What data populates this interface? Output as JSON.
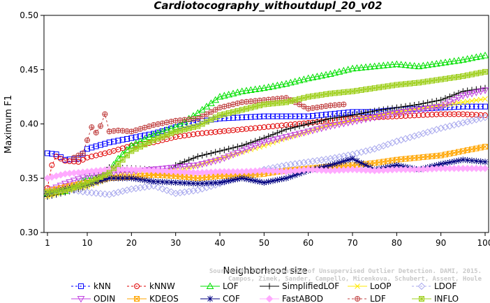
{
  "chart_data": {
    "type": "line",
    "title": "Cardiotocography_withoutdupl_20_v02",
    "xlabel": "Neighborhood size",
    "ylabel": "Maximum F1",
    "xlim": [
      1,
      100
    ],
    "ylim": [
      0.3,
      0.5
    ],
    "xticks": [
      1,
      10,
      20,
      30,
      40,
      50,
      60,
      70,
      80,
      90,
      100
    ],
    "yticks": [
      0.3,
      0.35,
      0.4,
      0.45,
      0.5
    ],
    "xtick_labels": [
      "1",
      "10",
      "20",
      "30",
      "40",
      "50",
      "60",
      "70",
      "80",
      "90",
      "100"
    ],
    "ytick_labels": [
      "0.30",
      "0.35",
      "0.40",
      "0.45",
      "0.50"
    ],
    "grid": false,
    "legend_position": "bottom",
    "watermark": {
      "line1": "Source: On the Evaluation of Unsupervised Outlier Detection. DAMI, 2015.",
      "line2": "Campos, Zimek, Sander, Campello, Micenkova, Schubert, Assent, Houle"
    },
    "series": [
      {
        "name": "kNN",
        "color": "#0000ff",
        "marker": "square",
        "dash": "3,3",
        "points": [
          [
            1,
            0.373
          ],
          [
            3,
            0.372
          ],
          [
            5,
            0.367
          ],
          [
            8,
            0.368
          ],
          [
            10,
            0.377
          ],
          [
            15,
            0.383
          ],
          [
            20,
            0.387
          ],
          [
            25,
            0.391
          ],
          [
            30,
            0.397
          ],
          [
            35,
            0.402
          ],
          [
            40,
            0.405
          ],
          [
            45,
            0.406
          ],
          [
            50,
            0.407
          ],
          [
            55,
            0.407
          ],
          [
            60,
            0.407
          ],
          [
            65,
            0.409
          ],
          [
            70,
            0.411
          ],
          [
            75,
            0.411
          ],
          [
            80,
            0.413
          ],
          [
            85,
            0.414
          ],
          [
            90,
            0.415
          ],
          [
            95,
            0.416
          ],
          [
            100,
            0.416
          ]
        ]
      },
      {
        "name": "kNNW",
        "color": "#e00000",
        "marker": "circle",
        "dash": "3,3",
        "points": [
          [
            1,
            0.341
          ],
          [
            2,
            0.362
          ],
          [
            3,
            0.37
          ],
          [
            5,
            0.366
          ],
          [
            8,
            0.365
          ],
          [
            10,
            0.369
          ],
          [
            15,
            0.374
          ],
          [
            20,
            0.38
          ],
          [
            25,
            0.383
          ],
          [
            30,
            0.388
          ],
          [
            35,
            0.391
          ],
          [
            40,
            0.393
          ],
          [
            45,
            0.395
          ],
          [
            50,
            0.397
          ],
          [
            55,
            0.399
          ],
          [
            60,
            0.401
          ],
          [
            65,
            0.403
          ],
          [
            70,
            0.405
          ],
          [
            75,
            0.406
          ],
          [
            80,
            0.407
          ],
          [
            85,
            0.408
          ],
          [
            90,
            0.409
          ],
          [
            95,
            0.409
          ],
          [
            100,
            0.408
          ]
        ]
      },
      {
        "name": "LOF",
        "color": "#00e000",
        "marker": "triangle",
        "dash": "",
        "points": [
          [
            1,
            0.336
          ],
          [
            5,
            0.338
          ],
          [
            8,
            0.345
          ],
          [
            10,
            0.35
          ],
          [
            13,
            0.35
          ],
          [
            15,
            0.357
          ],
          [
            17,
            0.368
          ],
          [
            20,
            0.38
          ],
          [
            25,
            0.39
          ],
          [
            30,
            0.397
          ],
          [
            35,
            0.41
          ],
          [
            40,
            0.425
          ],
          [
            45,
            0.43
          ],
          [
            50,
            0.433
          ],
          [
            55,
            0.437
          ],
          [
            60,
            0.442
          ],
          [
            65,
            0.446
          ],
          [
            70,
            0.451
          ],
          [
            75,
            0.453
          ],
          [
            80,
            0.455
          ],
          [
            85,
            0.453
          ],
          [
            90,
            0.456
          ],
          [
            95,
            0.459
          ],
          [
            100,
            0.463
          ]
        ]
      },
      {
        "name": "SimplifiedLOF",
        "color": "#000000",
        "marker": "plus",
        "dash": "",
        "points": [
          [
            1,
            0.333
          ],
          [
            5,
            0.337
          ],
          [
            8,
            0.34
          ],
          [
            10,
            0.343
          ],
          [
            15,
            0.36
          ],
          [
            20,
            0.359
          ],
          [
            25,
            0.358
          ],
          [
            28,
            0.355
          ],
          [
            30,
            0.362
          ],
          [
            35,
            0.37
          ],
          [
            40,
            0.375
          ],
          [
            45,
            0.38
          ],
          [
            50,
            0.387
          ],
          [
            55,
            0.395
          ],
          [
            60,
            0.4
          ],
          [
            65,
            0.405
          ],
          [
            70,
            0.408
          ],
          [
            75,
            0.412
          ],
          [
            80,
            0.415
          ],
          [
            85,
            0.418
          ],
          [
            90,
            0.422
          ],
          [
            95,
            0.43
          ],
          [
            100,
            0.433
          ]
        ]
      },
      {
        "name": "LoOP",
        "color": "#ffe800",
        "marker": "x",
        "dash": "",
        "points": [
          [
            1,
            0.333
          ],
          [
            5,
            0.338
          ],
          [
            10,
            0.342
          ],
          [
            15,
            0.35
          ],
          [
            20,
            0.357
          ],
          [
            25,
            0.354
          ],
          [
            30,
            0.357
          ],
          [
            35,
            0.362
          ],
          [
            40,
            0.368
          ],
          [
            45,
            0.374
          ],
          [
            50,
            0.38
          ],
          [
            55,
            0.387
          ],
          [
            60,
            0.393
          ],
          [
            65,
            0.399
          ],
          [
            70,
            0.403
          ],
          [
            75,
            0.407
          ],
          [
            80,
            0.411
          ],
          [
            85,
            0.414
          ],
          [
            90,
            0.417
          ],
          [
            95,
            0.42
          ],
          [
            100,
            0.423
          ]
        ]
      },
      {
        "name": "LDOF",
        "color": "#aaaaee",
        "marker": "diamond",
        "dash": "3,3",
        "points": [
          [
            1,
            0.337
          ],
          [
            5,
            0.34
          ],
          [
            10,
            0.337
          ],
          [
            15,
            0.335
          ],
          [
            20,
            0.34
          ],
          [
            25,
            0.343
          ],
          [
            30,
            0.336
          ],
          [
            35,
            0.339
          ],
          [
            40,
            0.345
          ],
          [
            45,
            0.352
          ],
          [
            50,
            0.358
          ],
          [
            55,
            0.362
          ],
          [
            60,
            0.365
          ],
          [
            65,
            0.368
          ],
          [
            70,
            0.372
          ],
          [
            75,
            0.377
          ],
          [
            80,
            0.384
          ],
          [
            85,
            0.39
          ],
          [
            90,
            0.396
          ],
          [
            95,
            0.401
          ],
          [
            100,
            0.406
          ]
        ]
      },
      {
        "name": "ODIN",
        "color": "#c040e0",
        "marker": "invtriangle",
        "dash": "",
        "points": [
          [
            1,
            0.338
          ],
          [
            5,
            0.345
          ],
          [
            10,
            0.352
          ],
          [
            15,
            0.355
          ],
          [
            20,
            0.356
          ],
          [
            25,
            0.358
          ],
          [
            30,
            0.36
          ],
          [
            35,
            0.362
          ],
          [
            40,
            0.367
          ],
          [
            45,
            0.375
          ],
          [
            50,
            0.383
          ],
          [
            55,
            0.388
          ],
          [
            60,
            0.393
          ],
          [
            65,
            0.398
          ],
          [
            70,
            0.402
          ],
          [
            75,
            0.406
          ],
          [
            80,
            0.41
          ],
          [
            85,
            0.413
          ],
          [
            90,
            0.416
          ],
          [
            95,
            0.426
          ],
          [
            100,
            0.431
          ]
        ]
      },
      {
        "name": "KDEOS",
        "color": "#ffa500",
        "marker": "squarex",
        "dash": "",
        "points": [
          [
            1,
            0.338
          ],
          [
            5,
            0.342
          ],
          [
            10,
            0.346
          ],
          [
            15,
            0.35
          ],
          [
            20,
            0.351
          ],
          [
            25,
            0.353
          ],
          [
            30,
            0.352
          ],
          [
            35,
            0.35
          ],
          [
            40,
            0.352
          ],
          [
            45,
            0.352
          ],
          [
            50,
            0.354
          ],
          [
            55,
            0.357
          ],
          [
            60,
            0.359
          ],
          [
            65,
            0.361
          ],
          [
            70,
            0.362
          ],
          [
            75,
            0.364
          ],
          [
            80,
            0.367
          ],
          [
            85,
            0.369
          ],
          [
            90,
            0.371
          ],
          [
            95,
            0.375
          ],
          [
            100,
            0.379
          ]
        ]
      },
      {
        "name": "COF",
        "color": "#000080",
        "marker": "star",
        "dash": "",
        "points": [
          [
            1,
            0.336
          ],
          [
            5,
            0.34
          ],
          [
            10,
            0.344
          ],
          [
            15,
            0.35
          ],
          [
            20,
            0.35
          ],
          [
            25,
            0.347
          ],
          [
            30,
            0.346
          ],
          [
            35,
            0.345
          ],
          [
            40,
            0.346
          ],
          [
            45,
            0.35
          ],
          [
            50,
            0.346
          ],
          [
            55,
            0.35
          ],
          [
            60,
            0.357
          ],
          [
            65,
            0.362
          ],
          [
            70,
            0.368
          ],
          [
            75,
            0.358
          ],
          [
            80,
            0.362
          ],
          [
            85,
            0.358
          ],
          [
            90,
            0.363
          ],
          [
            95,
            0.367
          ],
          [
            100,
            0.365
          ]
        ]
      },
      {
        "name": "FastABOD",
        "color": "#ffaaff",
        "marker": "filleddiamond",
        "dash": "",
        "points": [
          [
            1,
            0.35
          ],
          [
            5,
            0.354
          ],
          [
            10,
            0.356
          ],
          [
            15,
            0.358
          ],
          [
            20,
            0.358
          ],
          [
            25,
            0.357
          ],
          [
            30,
            0.356
          ],
          [
            35,
            0.355
          ],
          [
            40,
            0.356
          ],
          [
            45,
            0.356
          ],
          [
            50,
            0.357
          ],
          [
            55,
            0.356
          ],
          [
            60,
            0.358
          ],
          [
            65,
            0.357
          ],
          [
            70,
            0.358
          ],
          [
            75,
            0.357
          ],
          [
            80,
            0.358
          ],
          [
            85,
            0.358
          ],
          [
            90,
            0.359
          ],
          [
            95,
            0.359
          ],
          [
            100,
            0.359
          ]
        ]
      },
      {
        "name": "LDF",
        "color": "#c04040",
        "marker": "circleplus",
        "dash": "3,3",
        "points": [
          [
            7,
            0.369
          ],
          [
            9,
            0.373
          ],
          [
            11,
            0.397
          ],
          [
            12,
            0.392
          ],
          [
            13,
            0.398
          ],
          [
            14,
            0.409
          ],
          [
            15,
            0.393
          ],
          [
            17,
            0.394
          ],
          [
            20,
            0.393
          ],
          [
            25,
            0.399
          ],
          [
            30,
            0.403
          ],
          [
            35,
            0.405
          ],
          [
            40,
            0.415
          ],
          [
            45,
            0.42
          ],
          [
            50,
            0.422
          ],
          [
            55,
            0.424
          ],
          [
            60,
            0.414
          ],
          [
            65,
            0.417
          ],
          [
            68,
            0.418
          ]
        ]
      },
      {
        "name": "INFLO",
        "color": "#a0d020",
        "marker": "squarestar",
        "dash": "",
        "points": [
          [
            1,
            0.337
          ],
          [
            5,
            0.339
          ],
          [
            10,
            0.345
          ],
          [
            15,
            0.355
          ],
          [
            20,
            0.375
          ],
          [
            25,
            0.385
          ],
          [
            30,
            0.393
          ],
          [
            35,
            0.398
          ],
          [
            40,
            0.408
          ],
          [
            45,
            0.413
          ],
          [
            50,
            0.418
          ],
          [
            55,
            0.42
          ],
          [
            60,
            0.425
          ],
          [
            65,
            0.428
          ],
          [
            70,
            0.43
          ],
          [
            75,
            0.433
          ],
          [
            80,
            0.436
          ],
          [
            85,
            0.438
          ],
          [
            90,
            0.441
          ],
          [
            95,
            0.444
          ],
          [
            100,
            0.448
          ]
        ]
      }
    ]
  }
}
